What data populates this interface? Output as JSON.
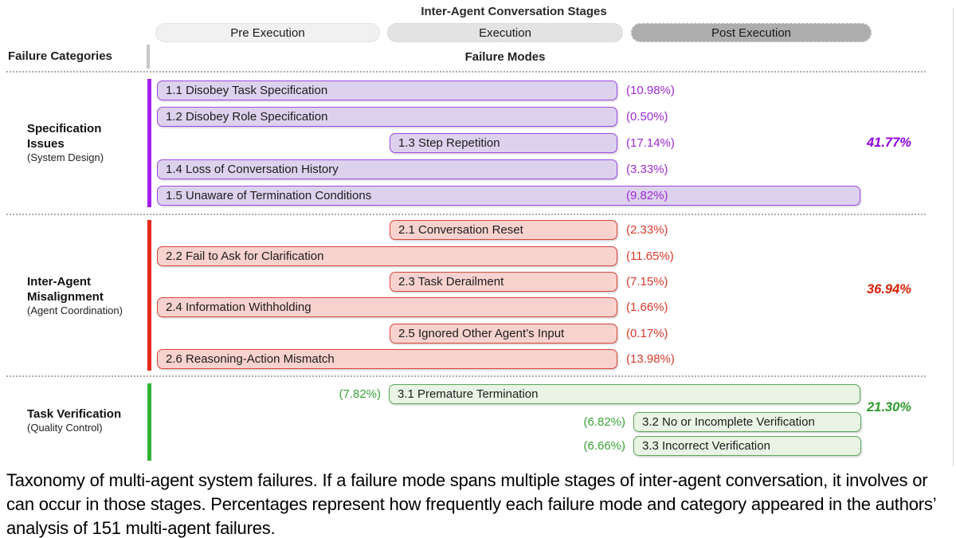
{
  "header": {
    "stages_title": "Inter-Agent Conversation Stages",
    "stages": [
      {
        "label": "Pre Execution",
        "fill": "#f1f1f1"
      },
      {
        "label": "Execution",
        "fill": "#e3e3e3"
      },
      {
        "label": "Post Execution",
        "fill": "#adadad"
      }
    ],
    "failure_categories_label": "Failure Categories",
    "failure_modes_label": "Failure Modes"
  },
  "categories": [
    {
      "name_line1": "Specification",
      "name_line2": "Issues",
      "subtitle": "(System Design)",
      "total": "41.77%",
      "accent_color": "#a21ff0",
      "modes": [
        {
          "label": "1.1 Disobey Task Specification",
          "pct": "(10.98%)",
          "stages": [
            "pre",
            "execution"
          ]
        },
        {
          "label": "1.2 Disobey Role Specification",
          "pct": "(0.50%)",
          "stages": [
            "pre",
            "execution"
          ]
        },
        {
          "label": "1.3 Step Repetition",
          "pct": "(17.14%)",
          "stages": [
            "execution"
          ]
        },
        {
          "label": "1.4 Loss of Conversation History",
          "pct": "(3.33%)",
          "stages": [
            "pre",
            "execution"
          ]
        },
        {
          "label": "1.5 Unaware of Termination Conditions",
          "pct": "(9.82%)",
          "stages": [
            "pre",
            "execution",
            "post"
          ]
        }
      ]
    },
    {
      "name_line1": "Inter-Agent",
      "name_line2": "Misalignment",
      "subtitle": "(Agent Coordination)",
      "total": "36.94%",
      "accent_color": "#e8291c",
      "modes": [
        {
          "label": "2.1 Conversation Reset",
          "pct": "(2.33%)",
          "stages": [
            "execution"
          ]
        },
        {
          "label": "2.2 Fail to Ask for Clarification",
          "pct": "(11.65%)",
          "stages": [
            "pre",
            "execution"
          ]
        },
        {
          "label": "2.3 Task Derailment",
          "pct": "(7.15%)",
          "stages": [
            "execution"
          ]
        },
        {
          "label": "2.4 Information Withholding",
          "pct": "(1.66%)",
          "stages": [
            "pre",
            "execution"
          ]
        },
        {
          "label": "2.5 Ignored Other Agent’s Input",
          "pct": "(0.17%)",
          "stages": [
            "execution"
          ]
        },
        {
          "label": "2.6 Reasoning-Action Mismatch",
          "pct": "(13.98%)",
          "stages": [
            "pre",
            "execution"
          ]
        }
      ]
    },
    {
      "name_line1": "Task Verification",
      "name_line2": "",
      "subtitle": "(Quality Control)",
      "total": "21.30%",
      "accent_color": "#33b333",
      "modes": [
        {
          "label": "3.1  Premature Termination",
          "pct": "(7.82%)",
          "stages": [
            "execution",
            "post"
          ]
        },
        {
          "label": "3.2 No or Incomplete Verification",
          "pct": "(6.82%)",
          "stages": [
            "post"
          ]
        },
        {
          "label": "3.3 Incorrect Verification",
          "pct": "(6.66%)",
          "stages": [
            "post"
          ]
        }
      ]
    }
  ],
  "caption": "Taxonomy of multi-agent system failures. If a failure mode spans multiple stages of inter-agent conversation, it involves or can occur in those stages. Percentages represent how frequently each failure mode and category appeared in the authors’ analysis of 151 multi-agent failures."
}
